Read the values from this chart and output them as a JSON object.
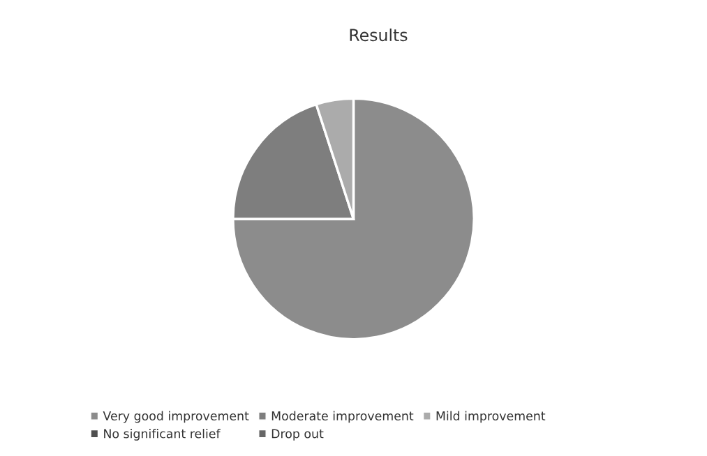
{
  "chart_data": {
    "type": "pie",
    "title": "Results",
    "categories": [
      "Very good improvement",
      "Moderate improvement",
      "Mild improvement",
      "No significant relief",
      "Drop out"
    ],
    "values": [
      75,
      20,
      5,
      0,
      0
    ],
    "colors": [
      "#8c8c8c",
      "#7e7e7e",
      "#ababab",
      "#4f4f4f",
      "#666666"
    ],
    "legend": "bottom"
  }
}
